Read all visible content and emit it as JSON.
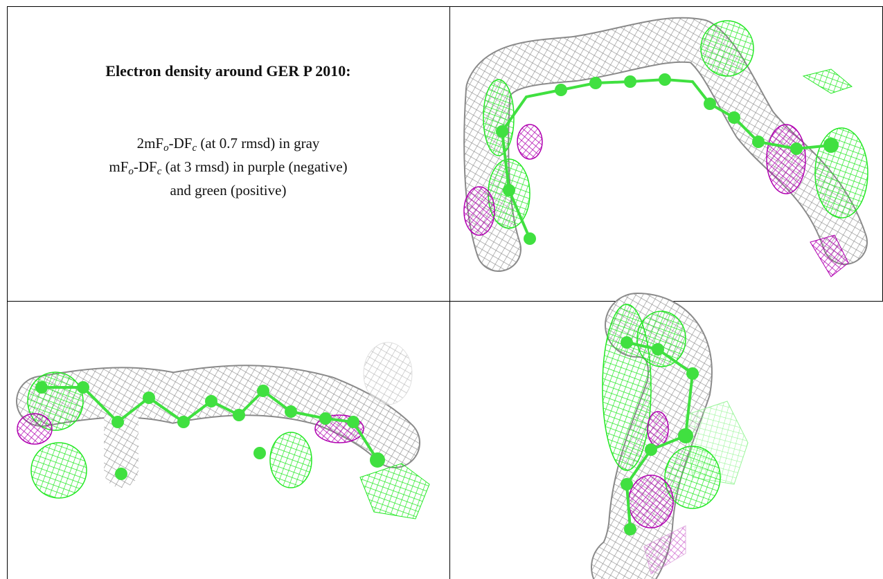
{
  "caption": {
    "title": "Electron density around GER P 2010:",
    "lines": [
      [
        "2mF",
        "o",
        "-DF",
        "c",
        " (at 0.7 rmsd) in gray"
      ],
      [
        "mF",
        "o",
        "-DF",
        "c",
        " (at 3 rmsd) in purple (negative)"
      ],
      [
        "and green (positive)"
      ]
    ]
  }
}
